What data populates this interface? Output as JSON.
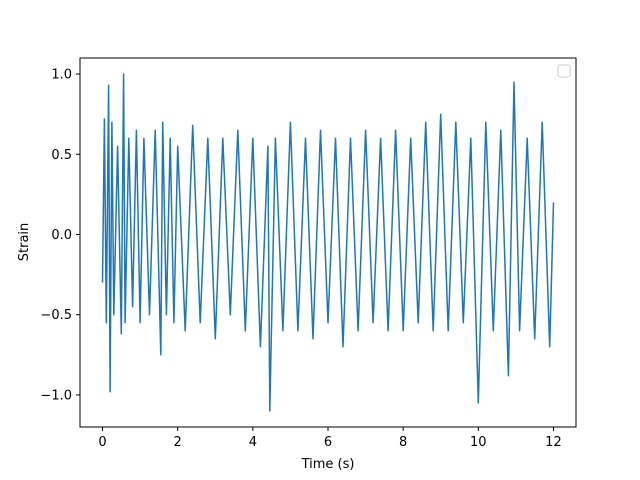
{
  "chart_data": {
    "type": "line",
    "title": "",
    "xlabel": "Time (s)",
    "ylabel": "Strain",
    "xlim": [
      -0.6,
      12.6
    ],
    "ylim": [
      -1.2,
      1.1
    ],
    "x_ticks": [
      0,
      2,
      4,
      6,
      8,
      10,
      12
    ],
    "x_tick_labels": [
      "0",
      "2",
      "4",
      "6",
      "8",
      "10",
      "12"
    ],
    "y_ticks": [
      1.0,
      0.5,
      0.0,
      -0.5,
      -1.0
    ],
    "y_tick_labels": [
      "1.0",
      "0.5",
      "0.0",
      "−0.5",
      "−1.0"
    ],
    "grid": false,
    "legend": {
      "position": "upper-right",
      "entries": []
    },
    "series": [
      {
        "color": "#1f77b4",
        "x": [
          0.0,
          0.05,
          0.1,
          0.16,
          0.2,
          0.25,
          0.3,
          0.4,
          0.5,
          0.56,
          0.6,
          0.7,
          0.8,
          0.9,
          1.0,
          1.1,
          1.25,
          1.4,
          1.55,
          1.6,
          1.7,
          1.8,
          1.9,
          2.0,
          2.2,
          2.4,
          2.6,
          2.8,
          3.0,
          3.2,
          3.4,
          3.6,
          3.8,
          4.0,
          4.2,
          4.4,
          4.45,
          4.6,
          4.8,
          5.0,
          5.2,
          5.4,
          5.6,
          5.8,
          6.0,
          6.2,
          6.4,
          6.6,
          6.8,
          7.0,
          7.2,
          7.4,
          7.6,
          7.8,
          8.0,
          8.2,
          8.4,
          8.6,
          8.8,
          9.0,
          9.2,
          9.4,
          9.6,
          9.8,
          10.0,
          10.2,
          10.4,
          10.6,
          10.8,
          10.95,
          11.1,
          11.3,
          11.5,
          11.7,
          11.9,
          12.0
        ],
        "y": [
          -0.3,
          0.72,
          -0.55,
          0.93,
          -0.98,
          0.7,
          -0.5,
          0.55,
          -0.62,
          1.0,
          -0.55,
          0.6,
          -0.45,
          0.65,
          -0.55,
          0.6,
          -0.5,
          0.65,
          -0.75,
          0.7,
          -0.5,
          0.6,
          -0.55,
          0.55,
          -0.6,
          0.68,
          -0.55,
          0.6,
          -0.65,
          0.6,
          -0.5,
          0.65,
          -0.6,
          0.6,
          -0.7,
          0.55,
          -1.1,
          0.6,
          -0.6,
          0.7,
          -0.6,
          0.6,
          -0.65,
          0.65,
          -0.55,
          0.6,
          -0.7,
          0.6,
          -0.6,
          0.65,
          -0.55,
          0.6,
          -0.6,
          0.65,
          -0.6,
          0.6,
          -0.55,
          0.7,
          -0.6,
          0.75,
          -0.6,
          0.7,
          -0.55,
          0.6,
          -1.05,
          0.7,
          -0.6,
          0.65,
          -0.88,
          0.95,
          -0.6,
          0.6,
          -0.65,
          0.7,
          -0.7,
          0.2
        ]
      }
    ]
  }
}
